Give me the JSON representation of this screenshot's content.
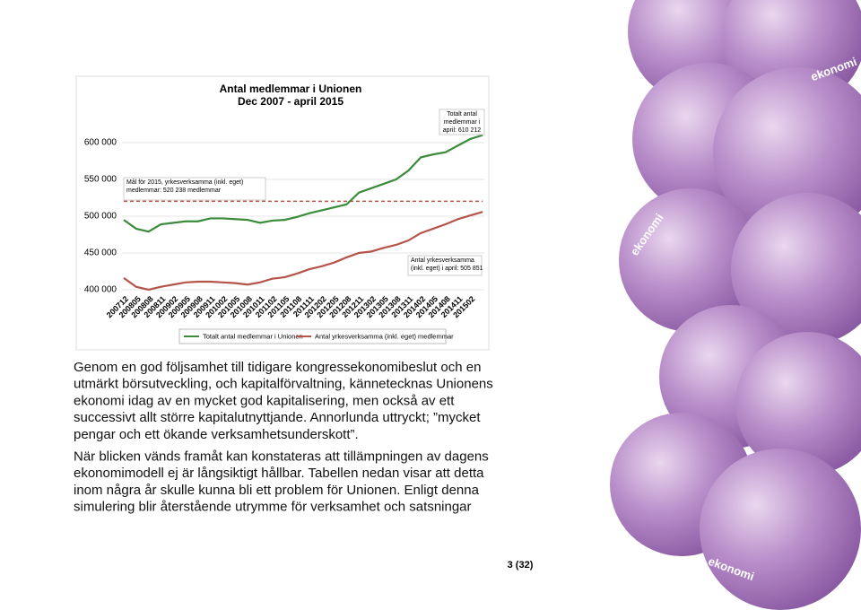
{
  "chart_data": {
    "type": "line",
    "title": [
      "Antal medlemmar i Unionen",
      "Dec 2007 - april 2015"
    ],
    "categories": [
      "200712",
      "200805",
      "200808",
      "200811",
      "200902",
      "200905",
      "200908",
      "200911",
      "201002",
      "201005",
      "201008",
      "201011",
      "201102",
      "201105",
      "201108",
      "201111",
      "201202",
      "201205",
      "201208",
      "201211",
      "201302",
      "201305",
      "201308",
      "201311",
      "201402",
      "201405",
      "201408",
      "201411",
      "201502",
      null
    ],
    "series": [
      {
        "name": "Totalt antal medlemmar i Unionen",
        "color": "#3b8b3b",
        "values": [
          495000,
          483000,
          479000,
          489000,
          491000,
          493000,
          493000,
          497000,
          497000,
          496000,
          495000,
          491000,
          494000,
          495000,
          499000,
          504000,
          508000,
          512000,
          516000,
          532000,
          538000,
          544000,
          550000,
          562000,
          580000,
          584000,
          587000,
          596000,
          605000,
          610212
        ]
      },
      {
        "name": "Antal yrkesverksamma (inkl. eget) medlemmar",
        "color": "#b5544a",
        "values": [
          416000,
          404000,
          400000,
          404000,
          407000,
          410000,
          411000,
          411000,
          410000,
          409000,
          407000,
          410000,
          415000,
          417000,
          422000,
          428000,
          432000,
          437000,
          444000,
          450000,
          452000,
          457000,
          461000,
          467000,
          477000,
          483000,
          489000,
          496000,
          501000,
          505851
        ]
      }
    ],
    "reference_line": {
      "value": 520238,
      "color": "#b5544a"
    },
    "ylim": [
      400000,
      630000
    ],
    "yticks": [
      {
        "value": 400000,
        "label": "400 000"
      },
      {
        "value": 450000,
        "label": "450 000"
      },
      {
        "value": 500000,
        "label": "500 000"
      },
      {
        "value": 550000,
        "label": "550 000"
      },
      {
        "value": 600000,
        "label": "600 000"
      }
    ],
    "annotations": [
      {
        "lines": [
          "Totalt antal",
          "medlemmar  i",
          "april: 610 212"
        ]
      },
      {
        "lines": [
          "Mål för 2015, yrkesverksamma (inkl. eget)",
          "medlemmar: 520 238 medlemmar"
        ]
      },
      {
        "lines": [
          "Antal yrkesverksamma",
          "(inkl. eget) i april: 505 851"
        ]
      }
    ]
  },
  "document": {
    "paragraphs": [
      [
        "Genom en god följsamhet till tidigare kongressekonomibeslut och en",
        "utmärkt börsutveckling, och kapitalförvaltning, kännetecknas Unionens",
        "ekonomi idag av en mycket god kapitalisering, men också av ett",
        "successivt allt större kapitalutnyttjande. Annorlunda uttryckt; ”mycket",
        "pengar och ett ökande verksamhetsunderskott”."
      ],
      [
        "När blicken vänds framåt kan konstateras att tillämpningen av dagens",
        "ekonomimodell ej är långsiktigt hållbar. Tabellen nedan visar att detta",
        "inom några år skulle kunna bli ett problem för Unionen. Enligt denna",
        "simulering blir återstående utrymme för verksamhet och satsningar"
      ]
    ],
    "page_number": "3 (32)",
    "brand": "ekonomi"
  }
}
